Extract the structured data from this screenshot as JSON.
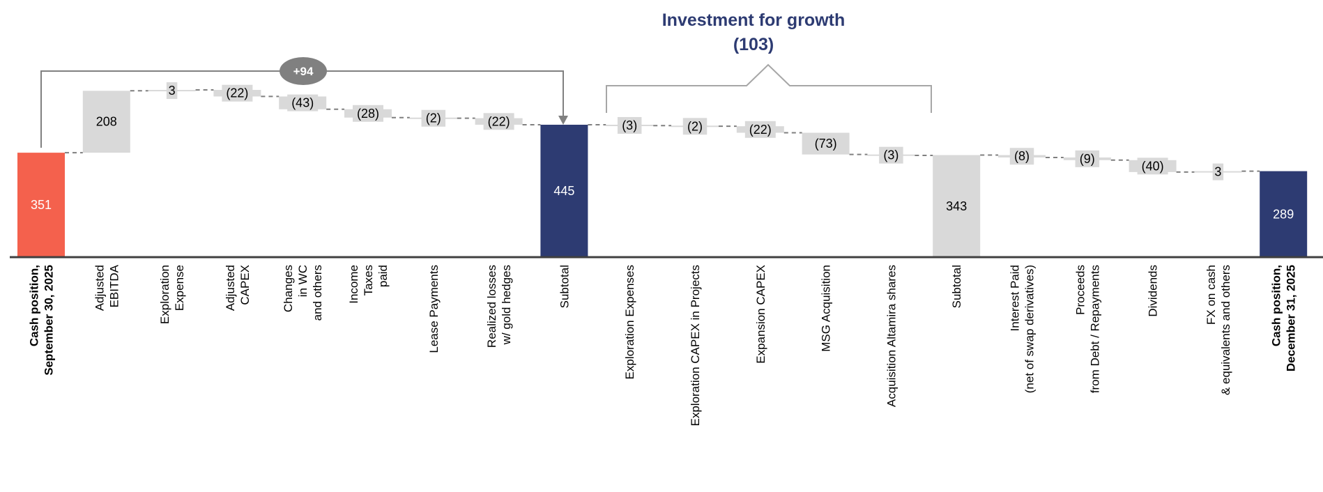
{
  "chart_data": {
    "type": "waterfall",
    "title": "",
    "categories": [
      [
        "Cash position,",
        "September 30, 2025"
      ],
      [
        "Adjusted",
        "EBITDA"
      ],
      [
        "Exploration",
        "Expense"
      ],
      [
        "Adjusted",
        "CAPEX"
      ],
      [
        "Changes",
        "in WC",
        "and others"
      ],
      [
        "Income",
        "Taxes",
        "paid"
      ],
      [
        "Lease Payments"
      ],
      [
        "Realized losses",
        "w/ gold hedges"
      ],
      [
        "Subtotal"
      ],
      [
        "Exploration  Expenses"
      ],
      [
        "Exploration  CAPEX in Projects"
      ],
      [
        "Expansion  CAPEX"
      ],
      [
        "MSG Acquisition"
      ],
      [
        "Acquisition  Altamira  shares"
      ],
      [
        "Subtotal"
      ],
      [
        "Interest Paid",
        "(net of swap derivatives)"
      ],
      [
        "Proceeds",
        "from Debt / Repayments"
      ],
      [
        "Dividends"
      ],
      [
        "FX on cash",
        "& equivalents  and others"
      ],
      [
        "Cash position,",
        "December 31, 2025"
      ]
    ],
    "bold_categories": [
      0,
      19
    ],
    "kinds": [
      "total",
      "delta",
      "delta",
      "delta",
      "delta",
      "delta",
      "delta",
      "delta",
      "subtotal",
      "delta",
      "delta",
      "delta",
      "delta",
      "delta",
      "subtotal",
      "delta",
      "delta",
      "delta",
      "delta",
      "total"
    ],
    "values": [
      351,
      208,
      3,
      -22,
      -43,
      -28,
      -2,
      -22,
      445,
      -3,
      -2,
      -22,
      -73,
      -3,
      343,
      -8,
      -9,
      -40,
      3,
      289
    ],
    "labels": [
      "351",
      "208",
      "3",
      "(22)",
      "(43)",
      "(28)",
      "(2)",
      "(22)",
      "445",
      "(3)",
      "(2)",
      "(22)",
      "(73)",
      "(3)",
      "343",
      "(8)",
      "(9)",
      "(40)",
      "3",
      "289"
    ],
    "bar_colors": {
      "start_total": "#f4614d",
      "end_total": "#2d3b72",
      "subtotal_1": "#2d3b72",
      "subtotal_2": "#d9d9d9",
      "delta": "#d9d9d9",
      "connector": "#7f7f7f",
      "axis": "#404040"
    },
    "annotations": {
      "operating_bracket": {
        "label": "+94",
        "from": 0,
        "to": 8,
        "color": "#808080"
      },
      "investment_bracket": {
        "title": "Investment for growth",
        "value": "(103)",
        "from": 9,
        "to": 13,
        "color": "#2d3b72"
      }
    },
    "xlabel": "",
    "ylabel": "",
    "grid": false
  }
}
